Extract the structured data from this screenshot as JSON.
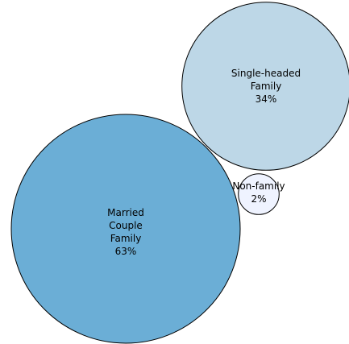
{
  "chart_data": {
    "type": "bubble",
    "title": "",
    "unit": "%",
    "series": [
      {
        "name": "Married Couple Family",
        "label_lines": [
          "Married",
          "Couple",
          "Family",
          "63%"
        ],
        "value": 63,
        "color": "#6baed6"
      },
      {
        "name": "Single-headed Family",
        "label_lines": [
          "Single-headed",
          "Family",
          "34%"
        ],
        "value": 34,
        "color": "#bdd7e7"
      },
      {
        "name": "Non-family",
        "label_lines": [
          "Non-family",
          "2%"
        ],
        "value": 2,
        "color": "#eff3ff"
      }
    ],
    "legend": "none",
    "grid": false
  }
}
